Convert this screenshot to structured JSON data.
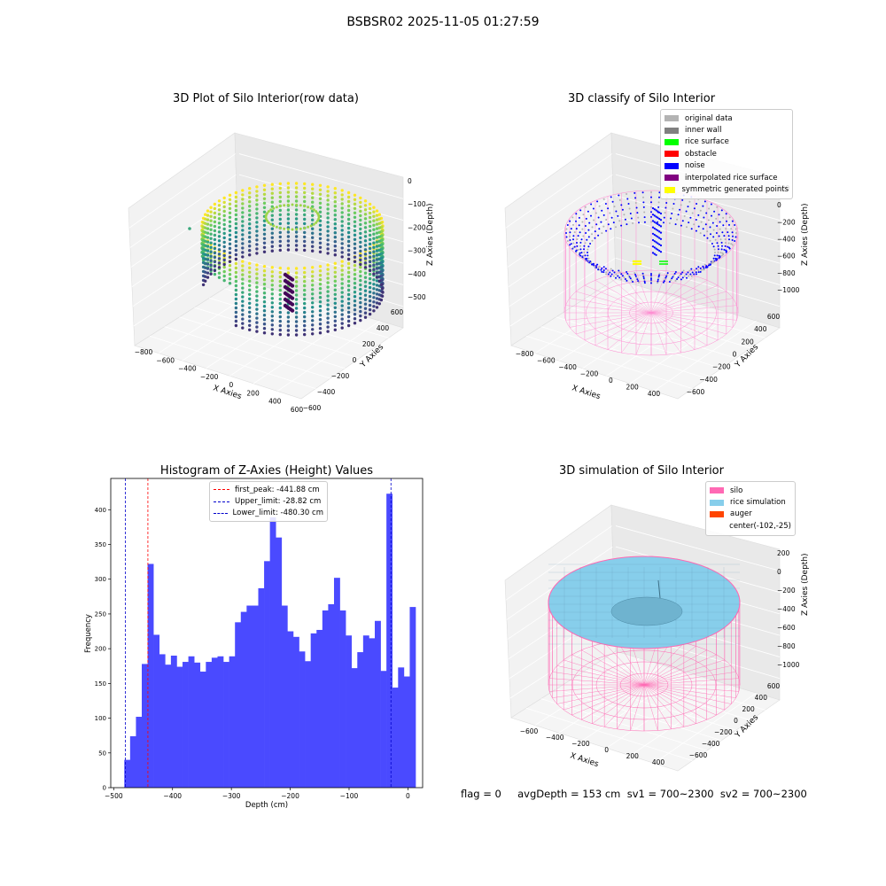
{
  "figure": {
    "suptitle": "BSBSR02 2025-11-05 01:27:59",
    "footer": "flag = 0     avgDepth = 153 cm  sv1 = 700~2300  sv2 = 700~2300"
  },
  "chart_data": [
    {
      "id": "raw",
      "type": "scatter",
      "projection": "3d",
      "title": "3D Plot of Silo Interior(row data)",
      "xlabel": "X Axies",
      "ylabel": "Y Axies",
      "zlabel": "Z Axies (Depth)",
      "x_ticks": [
        "−800",
        "−600",
        "−400",
        "−200",
        "0",
        "200",
        "400",
        "600"
      ],
      "y_ticks": [
        "−600",
        "−400",
        "−200",
        "0",
        "200",
        "400",
        "600"
      ],
      "z_ticks": [
        "0",
        "−100",
        "−200",
        "−300",
        "−400",
        "−500"
      ],
      "colormap": "viridis",
      "colors": {
        "low": "#440154",
        "mid": "#21918c",
        "high": "#fde725"
      }
    },
    {
      "id": "classify",
      "type": "scatter",
      "projection": "3d",
      "title": "3D classify of Silo Interior",
      "xlabel": "X Axies",
      "ylabel": "Y Axies",
      "zlabel": "Z Axies (Depth)",
      "x_ticks": [
        "−800",
        "−600",
        "−400",
        "−200",
        "0",
        "200",
        "400"
      ],
      "y_ticks": [
        "−600",
        "−400",
        "−200",
        "0",
        "200",
        "400",
        "600"
      ],
      "z_ticks": [
        "200",
        "0",
        "−200",
        "−400",
        "−600",
        "−800",
        "−1000"
      ],
      "legend": [
        {
          "label": "original data",
          "color": "#b3b3b3"
        },
        {
          "label": "inner wall",
          "color": "#808080"
        },
        {
          "label": "rice surface",
          "color": "#00ff00"
        },
        {
          "label": "obstacle",
          "color": "#ff0000"
        },
        {
          "label": "noise",
          "color": "#0000ff"
        },
        {
          "label": "interpolated rice surface",
          "color": "#800080"
        },
        {
          "label": "symmetric generated points",
          "color": "#ffff00"
        }
      ],
      "wire_color": "#ff8ad1"
    },
    {
      "id": "hist",
      "type": "bar",
      "title": "Histogram of Z-Axies (Height) Values",
      "xlabel": "Depth (cm)",
      "ylabel": "Frequency",
      "xlim": [
        -505,
        25
      ],
      "ylim": [
        0,
        445
      ],
      "x_ticks": [
        -500,
        -400,
        -300,
        -200,
        -100,
        0
      ],
      "y_ticks": [
        0,
        50,
        100,
        150,
        200,
        250,
        300,
        350,
        400
      ],
      "bin_start": -482,
      "bin_width": 9.9,
      "values": [
        40,
        74,
        102,
        178,
        322,
        220,
        192,
        177,
        190,
        174,
        181,
        189,
        180,
        167,
        181,
        187,
        189,
        181,
        189,
        238,
        253,
        262,
        262,
        287,
        326,
        389,
        360,
        262,
        225,
        217,
        196,
        182,
        222,
        227,
        255,
        264,
        302,
        255,
        219,
        172,
        195,
        219,
        215,
        240,
        168,
        423,
        144,
        173,
        160,
        260
      ],
      "bar_color": "#4a4aff",
      "vlines": [
        {
          "label": "first_peak: -441.88 cm",
          "x": -441.88,
          "color": "#ff0000"
        },
        {
          "label": "Upper_limit: -28.82 cm",
          "x": -28.82,
          "color": "#0000cc"
        },
        {
          "label": "Lower_limit: -480.30 cm",
          "x": -480.3,
          "color": "#0000cc"
        }
      ]
    },
    {
      "id": "sim",
      "type": "surface",
      "projection": "3d",
      "title": "3D simulation of Silo Interior",
      "xlabel": "X Axies",
      "ylabel": "Y Axies",
      "zlabel": "Z Axies (Depth)",
      "x_ticks": [
        "−600",
        "−400",
        "−200",
        "0",
        "200",
        "400"
      ],
      "y_ticks": [
        "−600",
        "−400",
        "−200",
        "0",
        "200",
        "400",
        "600"
      ],
      "z_ticks": [
        "200",
        "0",
        "−200",
        "−400",
        "−600",
        "−800",
        "−1000"
      ],
      "legend": [
        {
          "label": "silo",
          "color": "#ff69b4"
        },
        {
          "label": "rice simulation",
          "color": "#87ceeb"
        },
        {
          "label": "auger",
          "color": "#ff4500"
        },
        {
          "label": "center(-102,-25)",
          "color": ""
        }
      ]
    }
  ]
}
